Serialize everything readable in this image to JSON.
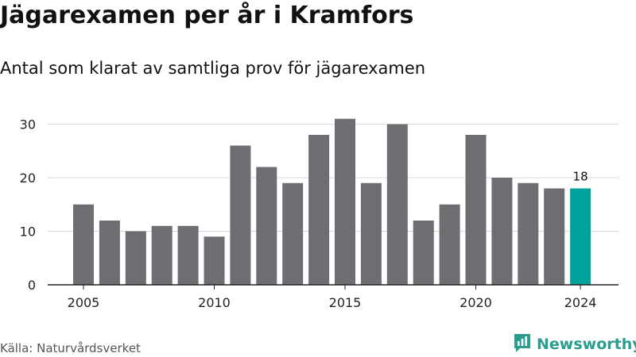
{
  "header": {
    "title": "Jägarexamen per år i Kramfors",
    "subtitle": "Antal som klarat av samtliga prov för jägarexamen"
  },
  "footer": {
    "source": "Källa: Naturvårdsverket",
    "brand": "Newsworthy",
    "brand_icon": "newsworthy-logo-icon"
  },
  "colors": {
    "bar": "#6e6d72",
    "highlight": "#00a39b",
    "grid": "#d9d9d9",
    "axis": "#222222",
    "brand": "#2a9d8f"
  },
  "chart_data": {
    "type": "bar",
    "title": "Jägarexamen per år i Kramfors",
    "subtitle": "Antal som klarat av samtliga prov för jägarexamen",
    "xlabel": "",
    "ylabel": "",
    "categories": [
      2005,
      2006,
      2007,
      2008,
      2009,
      2010,
      2011,
      2012,
      2013,
      2014,
      2015,
      2016,
      2017,
      2018,
      2019,
      2020,
      2021,
      2022,
      2023,
      2024
    ],
    "values": [
      15,
      12,
      10,
      11,
      11,
      9,
      26,
      22,
      19,
      28,
      31,
      19,
      30,
      12,
      15,
      28,
      20,
      19,
      18,
      18
    ],
    "ylim": [
      0,
      32
    ],
    "yticks": [
      0,
      10,
      20,
      30
    ],
    "xticks": [
      2005,
      2010,
      2015,
      2020,
      2024
    ],
    "highlight_category": 2024,
    "data_labels": [
      {
        "category": 2024,
        "text": "18"
      }
    ],
    "grid": true,
    "legend": "none"
  }
}
